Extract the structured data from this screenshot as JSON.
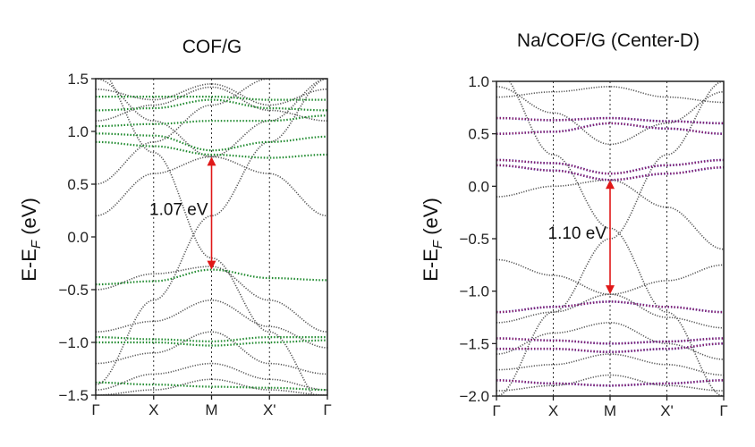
{
  "colors": {
    "band_gray": "#555555",
    "band_green": "#1f8a2e",
    "band_purple": "#8a1f6a",
    "band_blue": "#2a3fcf",
    "arrow": "#e01818",
    "frame": "#222222"
  },
  "chart_data": [
    {
      "type": "line",
      "title": "COF/G",
      "ylabel": "E-E_F (eV)",
      "ylabel_main": "E-E",
      "ylabel_sub": "F",
      "ylabel_tail": " (eV)",
      "xlabel": "",
      "ylim": [
        -1.5,
        1.5
      ],
      "yticks": [
        1.5,
        1.0,
        0.5,
        0.0,
        -0.5,
        -1.0,
        -1.5
      ],
      "ytick_labels": [
        "1.5",
        "1.0",
        "0.5",
        "0.0",
        "−0.5",
        "−1.0",
        "−1.5"
      ],
      "kpoints": [
        "Γ",
        "X",
        "M",
        "X'",
        "Γ"
      ],
      "kpositions": [
        0,
        1,
        2,
        3,
        4
      ],
      "annotation": {
        "text": "1.07 eV",
        "x": 2,
        "y_from": -0.31,
        "y_to": 0.76
      },
      "highlight_color_key": "band_green",
      "highlight_bands": [
        [
          1.33,
          1.33,
          1.33,
          1.3,
          1.3
        ],
        [
          1.2,
          1.22,
          1.3,
          1.22,
          1.2
        ],
        [
          1.05,
          1.07,
          1.1,
          1.1,
          1.15
        ],
        [
          0.98,
          0.96,
          0.82,
          0.9,
          0.95
        ],
        [
          0.9,
          0.86,
          0.78,
          0.75,
          0.78
        ],
        [
          -0.45,
          -0.42,
          -0.31,
          -0.39,
          -0.41
        ],
        [
          -0.95,
          -0.97,
          -0.99,
          -0.95,
          -0.95
        ],
        [
          -1.0,
          -1.0,
          -1.03,
          -1.0,
          -0.98
        ],
        [
          -1.38,
          -1.4,
          -1.42,
          -1.43,
          -1.45
        ]
      ],
      "gray_bands": [
        [
          -1.4,
          -0.6,
          0.2,
          0.9,
          1.5
        ],
        [
          1.6,
          0.8,
          -0.2,
          -0.9,
          -1.6
        ],
        [
          0.5,
          0.9,
          1.25,
          1.5,
          1.5
        ],
        [
          1.5,
          1.1,
          0.76,
          0.6,
          0.2
        ],
        [
          0.2,
          0.6,
          0.76,
          1.1,
          1.5
        ],
        [
          -0.5,
          -0.35,
          -0.28,
          -0.6,
          -0.9
        ],
        [
          -0.9,
          -0.8,
          -0.6,
          -0.85,
          -1.05
        ],
        [
          -1.2,
          -1.1,
          -0.9,
          -1.2,
          -1.3
        ],
        [
          -1.45,
          -1.3,
          -1.2,
          -1.35,
          -1.45
        ],
        [
          1.4,
          1.3,
          1.45,
          1.25,
          1.4
        ],
        [
          1.1,
          1.25,
          1.42,
          1.2,
          1.1
        ],
        [
          -1.5,
          -1.45,
          -1.35,
          -1.45,
          -1.5
        ]
      ]
    },
    {
      "type": "line",
      "title": "Na/COF/G (Center-D)",
      "ylabel": "E-E_F (eV)",
      "ylabel_main": "E-E",
      "ylabel_sub": "F",
      "ylabel_tail": " (eV)",
      "xlabel": "",
      "ylim": [
        -2.0,
        1.0
      ],
      "yticks": [
        1.0,
        0.5,
        0.0,
        -0.5,
        -1.0,
        -1.5,
        -2.0
      ],
      "ytick_labels": [
        "1.0",
        "0.5",
        "0.0",
        "−0.5",
        "−1.0",
        "−1.5",
        "−2.0"
      ],
      "kpoints": [
        "Γ",
        "X",
        "M",
        "X'",
        "Γ"
      ],
      "kpositions": [
        0,
        1,
        2,
        3,
        4
      ],
      "annotation": {
        "text": "1.10 eV",
        "x": 2,
        "y_from": -1.03,
        "y_to": 0.06
      },
      "highlight_color_key": "band_purple",
      "highlight_bands": [
        [
          0.65,
          0.63,
          0.65,
          0.62,
          0.6
        ],
        [
          0.5,
          0.52,
          0.6,
          0.55,
          0.5
        ],
        [
          0.25,
          0.22,
          0.12,
          0.2,
          0.25
        ],
        [
          0.2,
          0.15,
          0.06,
          0.12,
          0.18
        ],
        [
          -1.2,
          -1.15,
          -1.1,
          -1.15,
          -1.2
        ],
        [
          -1.45,
          -1.47,
          -1.5,
          -1.48,
          -1.45
        ],
        [
          -1.55,
          -1.55,
          -1.58,
          -1.55,
          -1.5
        ],
        [
          -1.85,
          -1.88,
          -1.9,
          -1.88,
          -1.85
        ]
      ],
      "gray_bands": [
        [
          -2.0,
          -1.2,
          -0.5,
          0.3,
          1.0
        ],
        [
          1.1,
          0.3,
          -0.4,
          -1.2,
          -2.0
        ],
        [
          0.95,
          0.7,
          0.4,
          0.6,
          0.9
        ],
        [
          -0.1,
          0.0,
          0.06,
          -0.2,
          -0.6
        ],
        [
          -0.7,
          -0.85,
          -1.03,
          -0.9,
          -0.75
        ],
        [
          -1.3,
          -1.2,
          -1.03,
          -1.25,
          -1.35
        ],
        [
          -1.6,
          -1.4,
          -1.3,
          -1.5,
          -1.65
        ],
        [
          -1.75,
          -1.7,
          -1.6,
          -1.7,
          -1.8
        ],
        [
          -1.95,
          -1.9,
          -1.8,
          -1.9,
          -1.95
        ],
        [
          0.85,
          0.9,
          0.95,
          0.85,
          0.8
        ]
      ]
    }
  ]
}
